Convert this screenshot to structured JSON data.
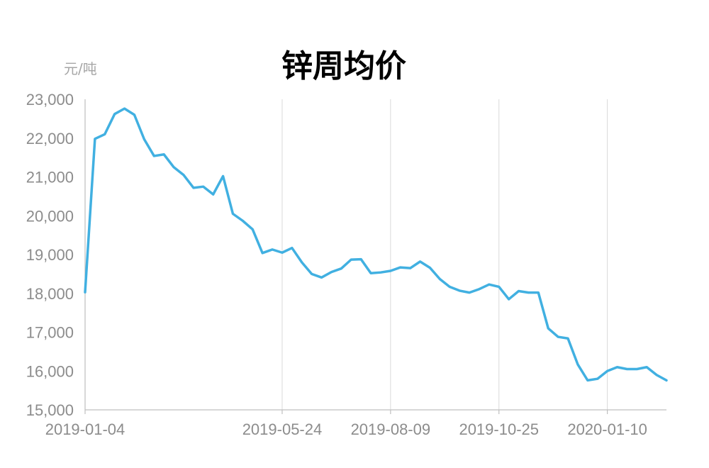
{
  "chart_data": {
    "type": "line",
    "title": "锌周均价",
    "unit_label": "元/吨",
    "ylim": [
      15000,
      23000
    ],
    "y_ticks": [
      15000,
      16000,
      17000,
      18000,
      19000,
      20000,
      21000,
      22000,
      23000
    ],
    "y_tick_labels": [
      "15,000",
      "16,000",
      "17,000",
      "18,000",
      "19,000",
      "20,000",
      "21,000",
      "22,000",
      "23,000"
    ],
    "x_start": "2019-01-04",
    "x_end": "2020-02-21",
    "x_ticks": [
      "2019-01-04",
      "2019-05-24",
      "2019-08-09",
      "2019-10-25",
      "2020-01-10"
    ],
    "grid": "vertical",
    "legend": "none",
    "series": [
      {
        "color": "#41b0e1",
        "x": [
          "2019-01-04",
          "2019-01-11",
          "2019-01-18",
          "2019-01-25",
          "2019-02-01",
          "2019-02-08",
          "2019-02-15",
          "2019-02-22",
          "2019-03-01",
          "2019-03-08",
          "2019-03-15",
          "2019-03-22",
          "2019-03-29",
          "2019-04-05",
          "2019-04-12",
          "2019-04-19",
          "2019-04-26",
          "2019-05-03",
          "2019-05-10",
          "2019-05-17",
          "2019-05-24",
          "2019-05-31",
          "2019-06-07",
          "2019-06-14",
          "2019-06-21",
          "2019-06-28",
          "2019-07-05",
          "2019-07-12",
          "2019-07-19",
          "2019-07-26",
          "2019-08-02",
          "2019-08-09",
          "2019-08-16",
          "2019-08-23",
          "2019-08-30",
          "2019-09-06",
          "2019-09-13",
          "2019-09-20",
          "2019-09-27",
          "2019-10-04",
          "2019-10-11",
          "2019-10-18",
          "2019-10-25",
          "2019-11-01",
          "2019-11-08",
          "2019-11-15",
          "2019-11-22",
          "2019-11-29",
          "2019-12-06",
          "2019-12-13",
          "2019-12-20",
          "2019-12-27",
          "2020-01-03",
          "2020-01-10",
          "2020-01-17",
          "2020-01-24",
          "2020-01-31",
          "2020-02-07",
          "2020-02-14",
          "2020-02-21"
        ],
        "values": [
          18030,
          21980,
          22100,
          22620,
          22760,
          22600,
          21970,
          21540,
          21580,
          21250,
          21050,
          20720,
          20750,
          20550,
          21020,
          20050,
          19870,
          19650,
          19040,
          19130,
          19050,
          19170,
          18800,
          18500,
          18410,
          18550,
          18640,
          18870,
          18880,
          18520,
          18540,
          18580,
          18670,
          18650,
          18820,
          18660,
          18370,
          18170,
          18070,
          18020,
          18110,
          18230,
          18170,
          17850,
          18060,
          18020,
          18020,
          17100,
          16880,
          16840,
          16170,
          15760,
          15800,
          16000,
          16100,
          16050,
          16050,
          16100,
          15900,
          15760
        ]
      }
    ]
  }
}
